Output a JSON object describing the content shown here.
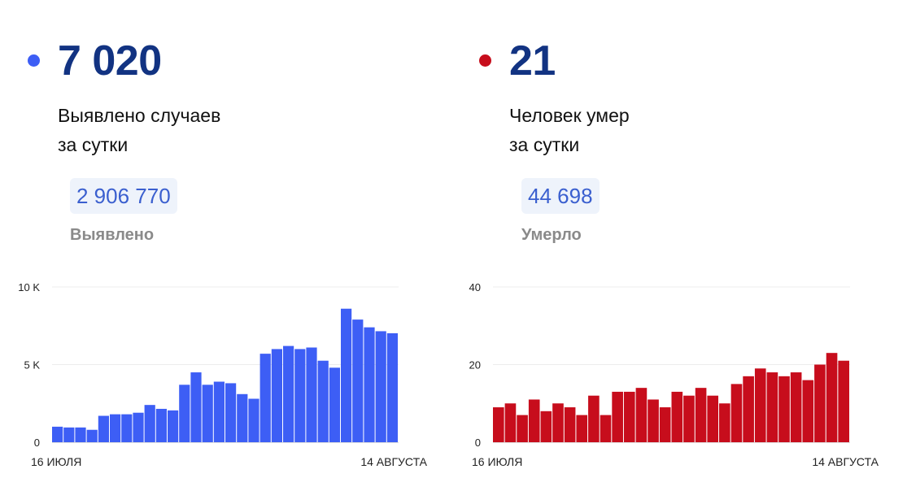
{
  "colors": {
    "blue": "#3d5ef5",
    "red": "#c70d1c",
    "navy": "#123382"
  },
  "panels": [
    {
      "dot_color": "#3d5ef5",
      "big_number": "7 020",
      "caption_line1": "Выявлено случаев",
      "caption_line2": "за сутки",
      "total": "2 906 770",
      "total_label": "Выявлено"
    },
    {
      "dot_color": "#c70d1c",
      "big_number": "21",
      "caption_line1": "Человек умер",
      "caption_line2": "за сутки",
      "total": "44 698",
      "total_label": "Умерло"
    }
  ],
  "chart_data": [
    {
      "type": "bar",
      "title": "",
      "color": "#3d5ef5",
      "ylim": [
        0,
        10000
      ],
      "y_ticks": [
        0,
        5000,
        10000
      ],
      "y_tick_labels": [
        "0",
        "5 K",
        "10 K"
      ],
      "x_labels": [
        "16 ИЮЛЯ",
        "14 АВГУСТА"
      ],
      "grid": true,
      "values": [
        1000,
        950,
        950,
        800,
        1700,
        1800,
        1800,
        1900,
        2400,
        2150,
        2050,
        3700,
        4500,
        3700,
        3900,
        3800,
        3100,
        2800,
        5700,
        6000,
        6200,
        6000,
        6100,
        5250,
        4800,
        8600,
        7900,
        7400,
        7150,
        7020
      ]
    },
    {
      "type": "bar",
      "title": "",
      "color": "#c70d1c",
      "ylim": [
        0,
        40
      ],
      "y_ticks": [
        0,
        20,
        40
      ],
      "y_tick_labels": [
        "0",
        "20",
        "40"
      ],
      "x_labels": [
        "16 ИЮЛЯ",
        "14 АВГУСТА"
      ],
      "grid": true,
      "values": [
        9,
        10,
        7,
        11,
        8,
        10,
        9,
        7,
        12,
        7,
        13,
        13,
        14,
        11,
        9,
        13,
        12,
        14,
        12,
        10,
        15,
        17,
        19,
        18,
        17,
        18,
        16,
        20,
        23,
        21
      ]
    }
  ]
}
